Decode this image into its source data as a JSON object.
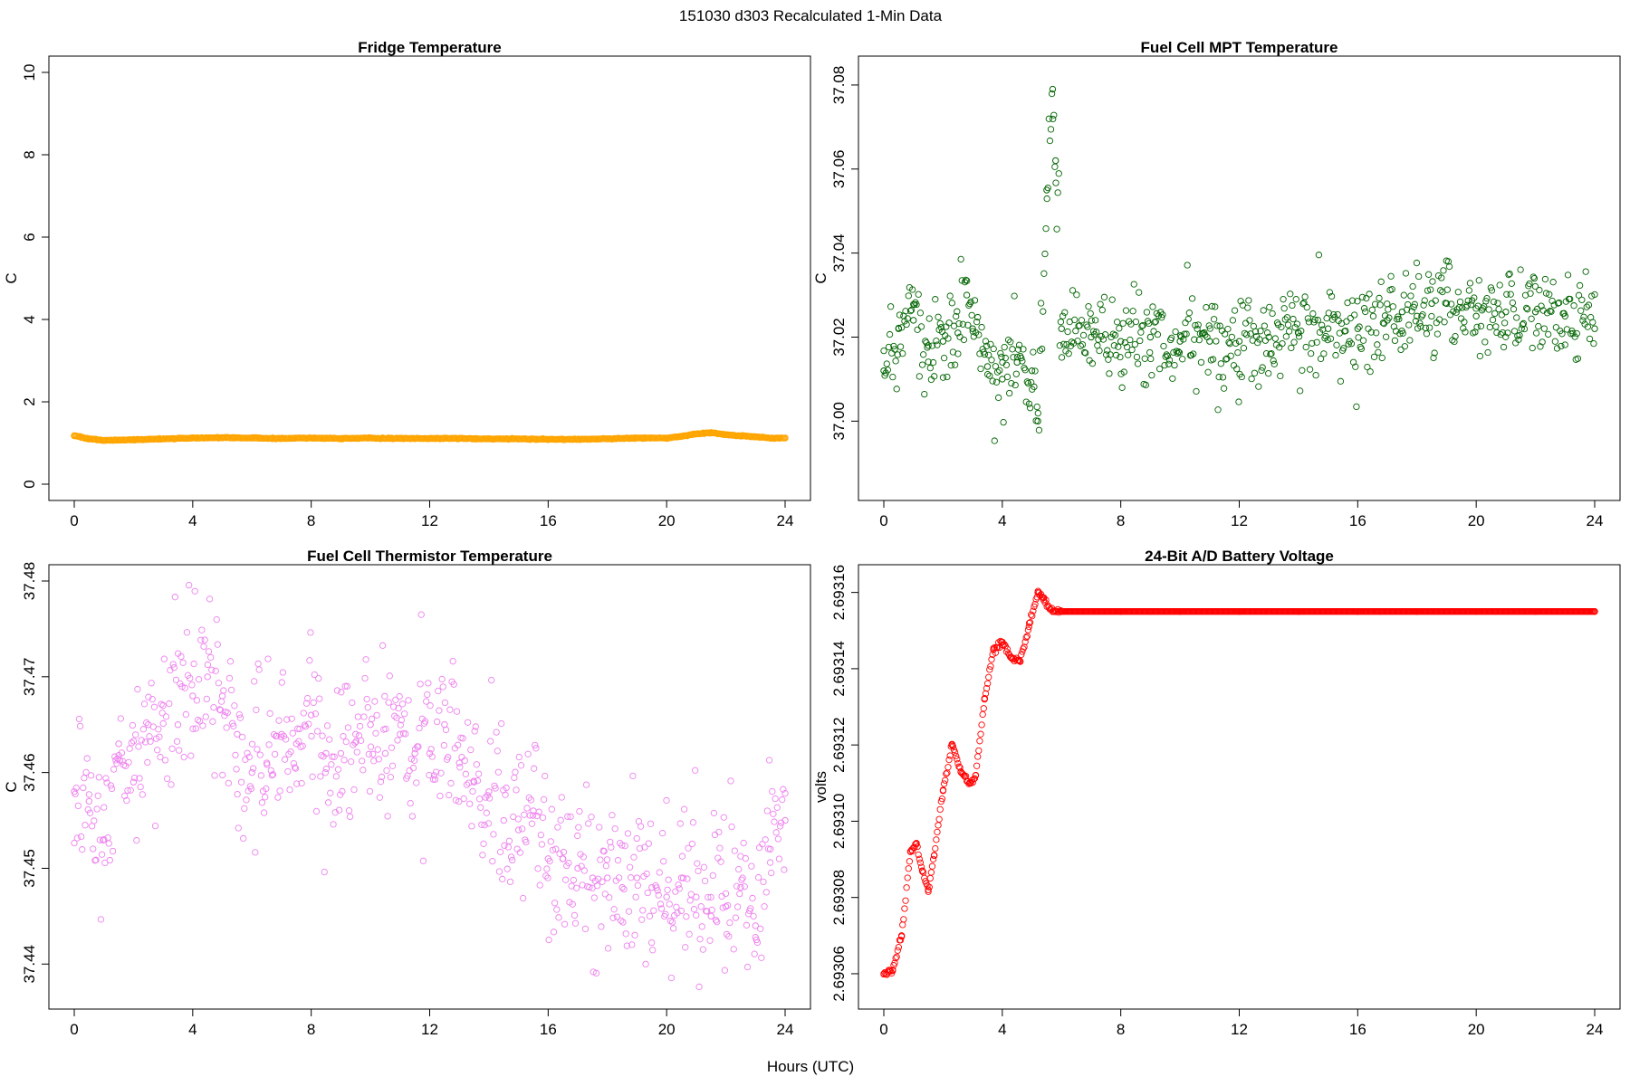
{
  "figure": {
    "title": "151030   d303   Recalculated 1-Min Data",
    "xlabel": "Hours (UTC)"
  },
  "chart_data": [
    {
      "type": "scatter",
      "title": "Fridge Temperature",
      "ylabel": "C",
      "xlabel": "Hours (UTC)",
      "color": "#FFA500",
      "xlim": [
        0,
        24
      ],
      "ylim": [
        0,
        10
      ],
      "xticks": [
        0,
        4,
        8,
        12,
        16,
        20,
        24
      ],
      "yticks": [
        0,
        2,
        4,
        6,
        8,
        10
      ],
      "ytick_labels": [
        "0",
        "2",
        "4",
        "6",
        "8",
        "10"
      ],
      "series": [
        {
          "name": "Fridge Temperature",
          "x": [
            0,
            0.5,
            1,
            2,
            3,
            4,
            5,
            6,
            7,
            8,
            9,
            10,
            11,
            12,
            13,
            14,
            15,
            16,
            17,
            18,
            19,
            20,
            20.5,
            21,
            21.5,
            22,
            22.5,
            23,
            23.5,
            24
          ],
          "y": [
            1.18,
            1.1,
            1.06,
            1.08,
            1.1,
            1.12,
            1.13,
            1.12,
            1.11,
            1.12,
            1.11,
            1.12,
            1.11,
            1.11,
            1.11,
            1.1,
            1.1,
            1.09,
            1.09,
            1.1,
            1.12,
            1.12,
            1.16,
            1.22,
            1.25,
            1.2,
            1.17,
            1.15,
            1.12,
            1.12
          ]
        }
      ]
    },
    {
      "type": "scatter",
      "title": "Fuel Cell MPT Temperature",
      "ylabel": "C",
      "xlabel": "Hours (UTC)",
      "color": "#006400",
      "xlim": [
        0,
        24
      ],
      "ylim": [
        36.985,
        37.083
      ],
      "xticks": [
        0,
        4,
        8,
        12,
        16,
        20,
        24
      ],
      "yticks": [
        37.0,
        37.02,
        37.04,
        37.06,
        37.08
      ],
      "ytick_labels": [
        "37.00",
        "37.02",
        "37.04",
        "37.06",
        "37.08"
      ],
      "series": [
        {
          "name": "Fuel Cell MPT Temperature",
          "x": [
            0,
            0.5,
            1,
            1.5,
            2,
            2.5,
            2.8,
            3,
            3.5,
            4,
            4.5,
            5,
            5.2,
            5.5,
            5.7,
            5.8,
            6,
            7,
            8,
            9,
            10,
            11,
            12,
            13,
            14,
            15,
            16,
            17,
            17.5,
            18,
            18.5,
            19,
            20,
            21,
            22,
            23,
            24
          ],
          "y": [
            37.012,
            37.022,
            37.024,
            37.018,
            37.019,
            37.021,
            37.03,
            37.022,
            37.013,
            37.01,
            37.014,
            37.012,
            37.0,
            37.055,
            37.079,
            37.062,
            37.022,
            37.02,
            37.019,
            37.02,
            37.019,
            37.019,
            37.019,
            37.02,
            37.021,
            37.022,
            37.022,
            37.024,
            37.026,
            37.025,
            37.028,
            37.028,
            37.025,
            37.026,
            37.026,
            37.025,
            37.022
          ]
        }
      ]
    },
    {
      "type": "scatter",
      "title": "Fuel Cell Thermistor Temperature",
      "ylabel": "C",
      "xlabel": "Hours (UTC)",
      "color": "#EE82EE",
      "xlim": [
        0,
        24
      ],
      "ylim": [
        37.437,
        37.48
      ],
      "xticks": [
        0,
        4,
        8,
        12,
        16,
        20,
        24
      ],
      "yticks": [
        37.44,
        37.45,
        37.46,
        37.47,
        37.48
      ],
      "ytick_labels": [
        "37.44",
        "37.45",
        "37.46",
        "37.47",
        "37.48"
      ],
      "series": [
        {
          "name": "Fuel Cell Thermistor Temperature",
          "x": [
            0,
            0.5,
            1,
            1.5,
            2,
            2.5,
            3,
            3.5,
            4,
            4.5,
            5,
            5.5,
            6,
            6.5,
            7,
            7.5,
            8,
            8.5,
            9,
            9.5,
            10,
            10.5,
            11,
            11.5,
            12,
            12.5,
            13,
            13.5,
            14,
            14.5,
            15,
            15.5,
            16,
            16.5,
            17,
            17.5,
            18,
            18.5,
            19,
            19.5,
            20,
            20.5,
            21,
            21.5,
            22,
            22.5,
            23,
            23.5,
            24
          ],
          "y": [
            37.458,
            37.457,
            37.453,
            37.463,
            37.459,
            37.465,
            37.467,
            37.465,
            37.468,
            37.47,
            37.468,
            37.464,
            37.46,
            37.461,
            37.464,
            37.463,
            37.466,
            37.462,
            37.462,
            37.464,
            37.465,
            37.462,
            37.464,
            37.462,
            37.462,
            37.465,
            37.461,
            37.459,
            37.458,
            37.455,
            37.454,
            37.456,
            37.451,
            37.451,
            37.45,
            37.449,
            37.449,
            37.448,
            37.449,
            37.448,
            37.447,
            37.449,
            37.447,
            37.445,
            37.446,
            37.448,
            37.444,
            37.452,
            37.455
          ]
        }
      ]
    },
    {
      "type": "scatter",
      "title": "24-Bit A/D Battery Voltage",
      "ylabel": "volts",
      "xlabel": "Hours (UTC)",
      "color": "#FF0000",
      "xlim": [
        0,
        24
      ],
      "ylim": [
        2.693055,
        2.693163
      ],
      "xticks": [
        0,
        4,
        8,
        12,
        16,
        20,
        24
      ],
      "yticks": [
        2.69306,
        2.69308,
        2.6931,
        2.69312,
        2.69314,
        2.69316
      ],
      "ytick_labels": [
        "2.69306",
        "2.69308",
        "2.69310",
        "2.69312",
        "2.69314",
        "2.69316"
      ],
      "series": [
        {
          "name": "24-Bit A/D Battery Voltage",
          "x": [
            0,
            0.3,
            0.6,
            0.9,
            1.1,
            1.3,
            1.5,
            1.7,
            2.0,
            2.3,
            2.6,
            2.9,
            3.1,
            3.4,
            3.7,
            4.0,
            4.3,
            4.6,
            4.9,
            5.2,
            5.4,
            5.7,
            6,
            8,
            10,
            12,
            14,
            16,
            18,
            20,
            22,
            24
          ],
          "y": [
            2.69306,
            2.693061,
            2.69307,
            2.693092,
            2.693094,
            2.693087,
            2.693082,
            2.693091,
            2.693108,
            2.69312,
            2.693113,
            2.69311,
            2.693112,
            2.693132,
            2.693145,
            2.693147,
            2.693143,
            2.693142,
            2.693151,
            2.69316,
            2.693158,
            2.693155,
            2.693155,
            2.693155,
            2.693155,
            2.693155,
            2.693155,
            2.693155,
            2.693155,
            2.693155,
            2.693155,
            2.693155
          ]
        }
      ]
    }
  ]
}
